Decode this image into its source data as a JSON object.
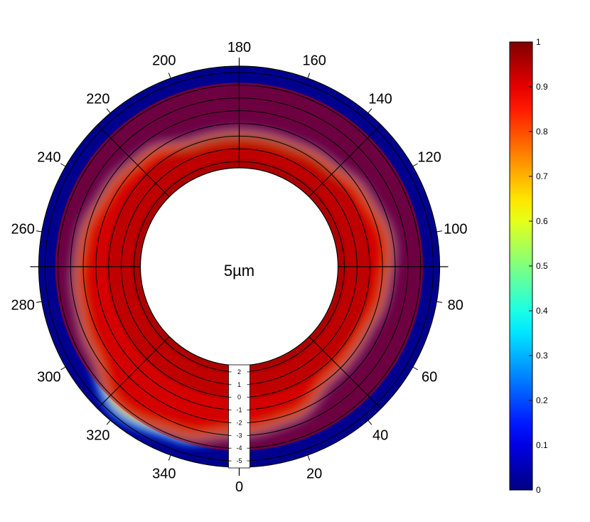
{
  "chart_data": {
    "type": "heatmap",
    "subtype": "polar",
    "center_label": "5µm",
    "angular_ticks": [
      0,
      20,
      40,
      60,
      80,
      100,
      120,
      140,
      160,
      180,
      200,
      220,
      240,
      260,
      280,
      300,
      320,
      340
    ],
    "angular_tick_labels": [
      "0",
      "20",
      "40",
      "60",
      "80",
      "100",
      "120",
      "140",
      "160",
      "180",
      "200",
      "220",
      "240",
      "260",
      "280",
      "300",
      "320",
      "340"
    ],
    "radial_scale_ticks": [
      2,
      1,
      0,
      -1,
      -2,
      -3,
      -4,
      -5
    ],
    "radial_scale_labels": [
      "2",
      "1",
      "0",
      "-1",
      "-2",
      "-3",
      "-4",
      "-5"
    ],
    "rlim": [
      -5.5,
      2.5
    ],
    "colorbar": {
      "colormap": "jet",
      "clim": [
        0,
        1
      ],
      "ticks": [
        0,
        0.1,
        0.2,
        0.3,
        0.4,
        0.5,
        0.6,
        0.7,
        0.8,
        0.9,
        1
      ],
      "tick_labels": [
        "0",
        "0.1",
        "0.2",
        "0.3",
        "0.4",
        "0.5",
        "0.6",
        "0.7",
        "0.8",
        "0.9",
        "1"
      ]
    },
    "boundary_profile": {
      "angles": [
        0,
        20,
        40,
        60,
        80,
        100,
        120,
        140,
        160,
        180,
        200,
        220,
        240,
        260,
        280,
        300,
        320,
        340,
        360
      ],
      "radius": [
        -2.3,
        -1.9,
        -0.6,
        -0.5,
        -0.9,
        -1.3,
        -0.7,
        0.0,
        0.3,
        0.3,
        0.3,
        -0.8,
        -1.3,
        -1.9,
        -2.2,
        -2.6,
        -4.0,
        -3.3,
        -2.3
      ]
    },
    "bands": [
      {
        "from": 1.8,
        "to": 2.5,
        "value": 1.0
      },
      {
        "from": -0.2,
        "to": 1.8,
        "value": 0.97
      },
      {
        "from": -4.2,
        "to": -0.2,
        "value": 0.93
      }
    ]
  },
  "colors": {
    "background": "#ffffff",
    "grid": "#000000",
    "outside": "#00008f"
  }
}
